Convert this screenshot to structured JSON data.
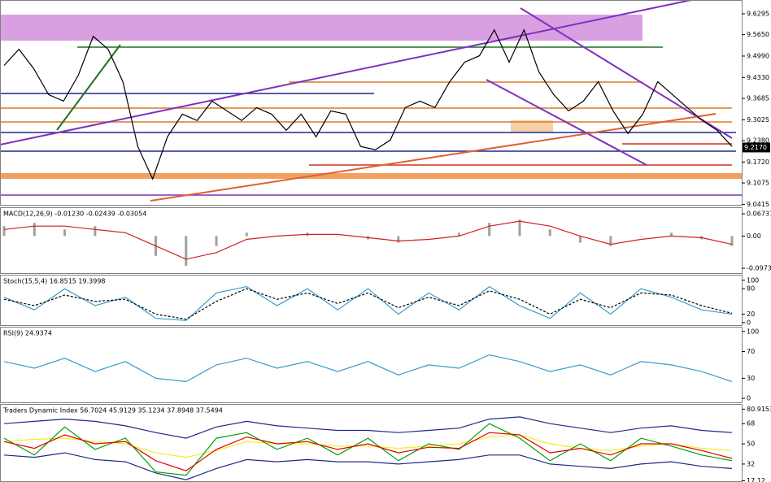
{
  "chart_data": [
    {
      "type": "line",
      "ylim": [
        9.04,
        9.672
      ],
      "yticks": [
        9.6295,
        {
          "value": 9.565,
          "label": "9.5650"
        },
        {
          "value": 9.499,
          "label": "9.4990"
        },
        {
          "value": 9.433,
          "label": "9.4330"
        },
        9.3685,
        9.3025,
        {
          "value": 9.238,
          "label": "9.2380"
        },
        {
          "value": 9.172,
          "label": "9.1720"
        },
        9.1075,
        9.0415
      ],
      "last_price": {
        "value": 9.217,
        "label": "9.2170"
      },
      "series": [
        {
          "color": "#000000",
          "values": [
            9.47,
            9.52,
            9.46,
            9.38,
            9.36,
            9.44,
            9.56,
            9.52,
            9.42,
            9.22,
            9.12,
            9.25,
            9.32,
            9.3,
            9.36,
            9.33,
            9.3,
            9.34,
            9.32,
            9.27,
            9.32,
            9.25,
            9.33,
            9.32,
            9.22,
            9.21,
            9.24,
            9.34,
            9.36,
            9.34,
            9.42,
            9.48,
            9.5,
            9.58,
            9.48,
            9.58,
            9.45,
            9.38,
            9.33,
            9.36,
            9.42,
            9.33,
            9.26,
            9.32,
            9.42,
            9.38,
            9.34,
            9.3,
            9.27,
            9.22
          ]
        }
      ]
    },
    {
      "type": "line",
      "title": "MACD(12,26,9) -0.01230 -0.02439 -0.03054",
      "ylim": [
        -0.112,
        0.087
      ],
      "yticks": [
        0.06737,
        {
          "value": 0,
          "label": "0.00"
        },
        -0.09737
      ],
      "series": [
        {
          "color": "#a0a0a0",
          "style": "histogram",
          "values": [
            0.03,
            0.04,
            0.02,
            0.03,
            0.0,
            -0.06,
            -0.09,
            -0.03,
            0.01,
            0.0,
            0.01,
            0.0,
            -0.01,
            -0.02,
            0.0,
            0.01,
            0.04,
            0.05,
            0.02,
            -0.02,
            -0.03,
            0.0,
            0.01,
            -0.01,
            -0.03
          ]
        },
        {
          "color": "#d02020",
          "values": [
            0.02,
            0.03,
            0.03,
            0.02,
            0.01,
            -0.03,
            -0.07,
            -0.05,
            -0.01,
            0.0,
            0.005,
            0.005,
            -0.005,
            -0.015,
            -0.01,
            0.0,
            0.03,
            0.045,
            0.03,
            0.0,
            -0.025,
            -0.01,
            0.0,
            -0.005,
            -0.025
          ]
        }
      ]
    },
    {
      "type": "line",
      "title": "Stoch(15,5,4) 16.8515 19.3998",
      "ylim": [
        -6,
        113
      ],
      "yticks": [
        100,
        80,
        20,
        0
      ],
      "series": [
        {
          "color": "#3a9ccc",
          "values": [
            60,
            30,
            80,
            40,
            60,
            10,
            5,
            70,
            85,
            40,
            80,
            30,
            80,
            20,
            70,
            30,
            85,
            40,
            10,
            70,
            20,
            80,
            60,
            30,
            20
          ]
        },
        {
          "color": "#000000",
          "dash": true,
          "values": [
            55,
            40,
            65,
            50,
            55,
            20,
            8,
            50,
            80,
            55,
            70,
            45,
            70,
            35,
            60,
            40,
            75,
            55,
            20,
            55,
            35,
            70,
            65,
            40,
            22
          ]
        }
      ]
    },
    {
      "type": "line",
      "title": "RSI(9) 24.9374",
      "ylim": [
        -6,
        107
      ],
      "yticks": [
        100,
        70,
        30,
        0
      ],
      "series": [
        {
          "color": "#3a9ccc",
          "values": [
            55,
            45,
            60,
            40,
            55,
            30,
            25,
            50,
            60,
            45,
            55,
            40,
            55,
            35,
            50,
            45,
            65,
            55,
            40,
            50,
            35,
            55,
            50,
            40,
            25
          ]
        }
      ]
    },
    {
      "type": "line",
      "title": "Traders Dynamic Index 56.7024 45.9129 35.1234 37.8948 37.5494",
      "ylim": [
        16,
        85.5
      ],
      "yticks": [
        80.9153,
        68,
        50,
        32,
        17.12
      ],
      "series": [
        {
          "color": "#1e2a8a",
          "values": [
            68,
            70,
            72,
            70,
            66,
            60,
            55,
            65,
            70,
            66,
            64,
            62,
            62,
            60,
            62,
            64,
            72,
            74,
            68,
            64,
            60,
            64,
            66,
            62,
            60
          ]
        },
        {
          "color": "#1e2a8a",
          "values": [
            40,
            38,
            42,
            36,
            34,
            24,
            18,
            28,
            36,
            34,
            36,
            34,
            34,
            32,
            34,
            36,
            40,
            40,
            32,
            30,
            28,
            32,
            34,
            30,
            28
          ]
        },
        {
          "color": "#f0f020",
          "values": [
            52,
            54,
            55,
            52,
            50,
            42,
            38,
            44,
            52,
            50,
            50,
            48,
            48,
            46,
            48,
            50,
            56,
            58,
            50,
            46,
            44,
            48,
            50,
            46,
            44
          ]
        },
        {
          "color": "#00a000",
          "values": [
            55,
            40,
            65,
            45,
            55,
            25,
            22,
            55,
            60,
            45,
            55,
            40,
            55,
            35,
            50,
            45,
            68,
            55,
            35,
            50,
            35,
            55,
            48,
            40,
            35
          ]
        },
        {
          "color": "#e00000",
          "values": [
            52,
            46,
            58,
            50,
            52,
            35,
            26,
            45,
            56,
            50,
            52,
            45,
            50,
            42,
            47,
            46,
            60,
            58,
            42,
            46,
            40,
            50,
            50,
            44,
            37
          ]
        }
      ]
    }
  ]
}
